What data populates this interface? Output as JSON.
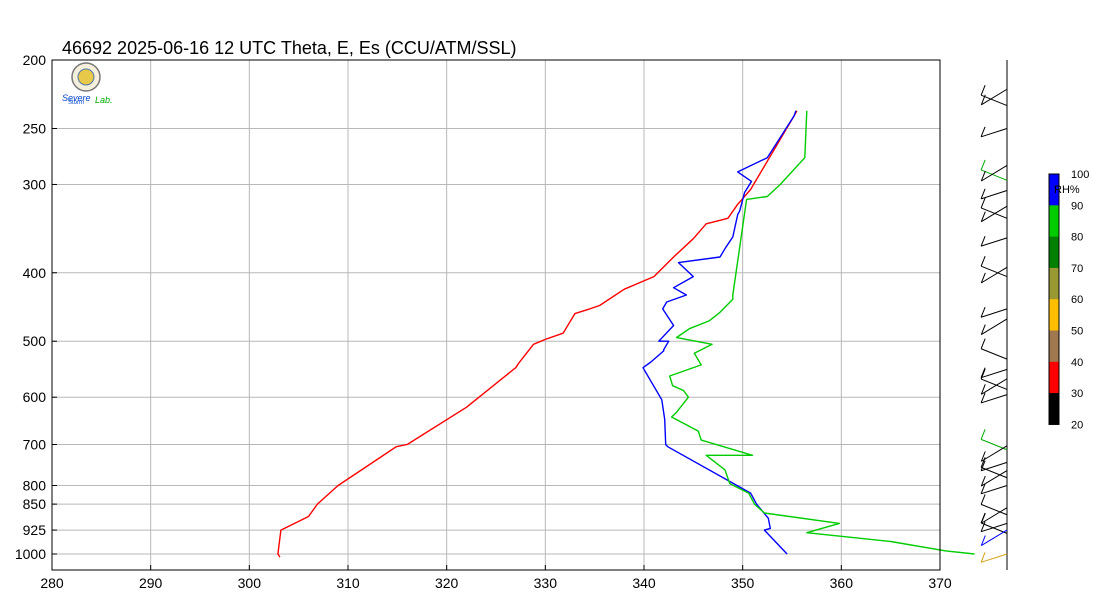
{
  "title": "46692  2025-06-16 12 UTC  Theta, E, Es (CCU/ATM/SSL)",
  "logo": {
    "text1": "Severe",
    "text2": "Storm",
    "text3": "Lab."
  },
  "chart_data": {
    "type": "line",
    "xlim": [
      280,
      370
    ],
    "ylim": [
      1000,
      200
    ],
    "y_scale": "log",
    "grid": true,
    "x_ticks": [
      280,
      290,
      300,
      310,
      320,
      330,
      340,
      350,
      360,
      370
    ],
    "y_ticks": [
      200,
      250,
      300,
      400,
      500,
      600,
      700,
      800,
      850,
      925,
      1000
    ],
    "series": [
      {
        "color": "#ff0000",
        "points": [
          [
            303.1,
            1010
          ],
          [
            302.9,
            1000
          ],
          [
            303.2,
            925
          ],
          [
            306.0,
            885
          ],
          [
            306.9,
            850
          ],
          [
            309.0,
            800
          ],
          [
            314.9,
            705
          ],
          [
            316.0,
            700
          ],
          [
            322.0,
            620
          ],
          [
            327.0,
            545
          ],
          [
            327.3,
            537
          ],
          [
            328.8,
            505
          ],
          [
            330.0,
            497
          ],
          [
            331.8,
            487
          ],
          [
            333.0,
            457
          ],
          [
            334.5,
            450
          ],
          [
            335.5,
            445
          ],
          [
            338.0,
            422
          ],
          [
            341.0,
            405
          ],
          [
            343.0,
            380
          ],
          [
            345.0,
            358
          ],
          [
            346.3,
            341
          ],
          [
            348.5,
            335
          ],
          [
            349.5,
            320
          ],
          [
            350.8,
            305
          ],
          [
            355.2,
            240
          ],
          [
            355.5,
            236
          ]
        ]
      },
      {
        "color": "#0000ff",
        "points": [
          [
            354.5,
            1000
          ],
          [
            352.2,
            925
          ],
          [
            352.8,
            920
          ],
          [
            352.6,
            890
          ],
          [
            351.4,
            850
          ],
          [
            350.8,
            820
          ],
          [
            342.4,
            705
          ],
          [
            342.2,
            700
          ],
          [
            342.1,
            645
          ],
          [
            341.8,
            605
          ],
          [
            339.9,
            545
          ],
          [
            340.7,
            535
          ],
          [
            342.0,
            516
          ],
          [
            342.0,
            514
          ],
          [
            342.5,
            500
          ],
          [
            341.5,
            500
          ],
          [
            343.0,
            475
          ],
          [
            341.9,
            450
          ],
          [
            342.3,
            440
          ],
          [
            344.3,
            430
          ],
          [
            343.0,
            420
          ],
          [
            345.0,
            405
          ],
          [
            343.5,
            387
          ],
          [
            347.7,
            380
          ],
          [
            348.3,
            368
          ],
          [
            349.0,
            356
          ],
          [
            349.5,
            331
          ],
          [
            349.7,
            327
          ],
          [
            350.2,
            308
          ],
          [
            350.9,
            297
          ],
          [
            349.5,
            288
          ],
          [
            352.5,
            275
          ],
          [
            355.2,
            240
          ],
          [
            355.4,
            236
          ]
        ]
      },
      {
        "color": "#00cc00",
        "points": [
          [
            373.5,
            1000
          ],
          [
            370.6,
            990
          ],
          [
            365.0,
            960
          ],
          [
            356.5,
            933
          ],
          [
            359.8,
            905
          ],
          [
            352.2,
            875
          ],
          [
            351.2,
            850
          ],
          [
            350.6,
            820
          ],
          [
            348.7,
            795
          ],
          [
            348.2,
            760
          ],
          [
            346.3,
            725
          ],
          [
            351.0,
            725
          ],
          [
            345.8,
            690
          ],
          [
            345.5,
            670
          ],
          [
            342.8,
            640
          ],
          [
            343.3,
            630
          ],
          [
            344.5,
            600
          ],
          [
            344.0,
            587
          ],
          [
            342.9,
            578
          ],
          [
            342.6,
            560
          ],
          [
            345.8,
            540
          ],
          [
            345.1,
            520
          ],
          [
            346.9,
            505
          ],
          [
            343.3,
            494
          ],
          [
            344.6,
            480
          ],
          [
            346.6,
            468
          ],
          [
            347.7,
            455
          ],
          [
            349.0,
            436
          ],
          [
            349.0,
            430
          ],
          [
            350.4,
            315
          ],
          [
            352.5,
            312
          ],
          [
            353.8,
            300
          ],
          [
            356.3,
            275
          ],
          [
            356.5,
            236
          ]
        ]
      }
    ],
    "wind_barbs": [
      {
        "pressure": 1000,
        "color": "#d4a017"
      },
      {
        "pressure": 935,
        "color": "#000000"
      },
      {
        "pressure": 925,
        "color": "#0000ff"
      },
      {
        "pressure": 905,
        "color": "#000000"
      },
      {
        "pressure": 880,
        "color": "#000000"
      },
      {
        "pressure": 860,
        "color": "#000000"
      },
      {
        "pressure": 800,
        "color": "#000000"
      },
      {
        "pressure": 780,
        "color": "#000000"
      },
      {
        "pressure": 762,
        "color": "#000000"
      },
      {
        "pressure": 742,
        "color": "#000000"
      },
      {
        "pressure": 712,
        "color": "#00aa00"
      },
      {
        "pressure": 703,
        "color": "#000000"
      },
      {
        "pressure": 595,
        "color": "#000000"
      },
      {
        "pressure": 585,
        "color": "#000000"
      },
      {
        "pressure": 565,
        "color": "#000000"
      },
      {
        "pressure": 548,
        "color": "#000000"
      },
      {
        "pressure": 530,
        "color": "#000000"
      },
      {
        "pressure": 465,
        "color": "#000000"
      },
      {
        "pressure": 450,
        "color": "#000000"
      },
      {
        "pressure": 405,
        "color": "#000000"
      },
      {
        "pressure": 393,
        "color": "#000000"
      },
      {
        "pressure": 357,
        "color": "#000000"
      },
      {
        "pressure": 335,
        "color": "#000000"
      },
      {
        "pressure": 322,
        "color": "#000000"
      },
      {
        "pressure": 306,
        "color": "#000000"
      },
      {
        "pressure": 296,
        "color": "#00aa00"
      },
      {
        "pressure": 282,
        "color": "#000000"
      },
      {
        "pressure": 250,
        "color": "#000000"
      },
      {
        "pressure": 232,
        "color": "#000000"
      },
      {
        "pressure": 220,
        "color": "#000000"
      }
    ],
    "colorbar": {
      "label": "RH%",
      "ticks": [
        "100",
        "90",
        "80",
        "70",
        "60",
        "50",
        "40",
        "30",
        "20"
      ],
      "colors": [
        "#0000ff",
        "#00cc00",
        "#008000",
        "#999933",
        "#ffbf00",
        "#a07850",
        "#ff0000",
        "#000000"
      ]
    }
  }
}
